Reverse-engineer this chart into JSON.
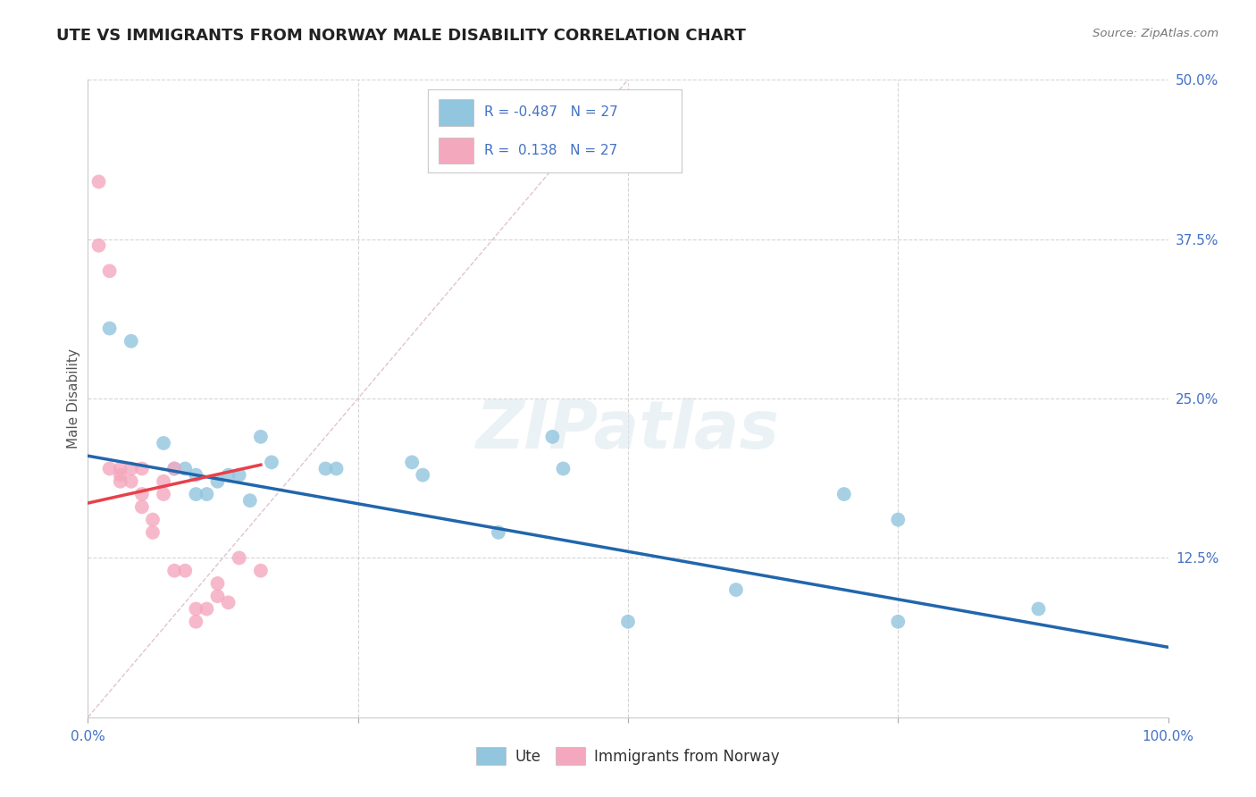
{
  "title": "UTE VS IMMIGRANTS FROM NORWAY MALE DISABILITY CORRELATION CHART",
  "source": "Source: ZipAtlas.com",
  "ylabel": "Male Disability",
  "watermark": "ZIPatlas",
  "xlim": [
    0,
    1.0
  ],
  "ylim": [
    0,
    0.5
  ],
  "yticks": [
    0.0,
    0.125,
    0.25,
    0.375,
    0.5
  ],
  "ytick_labels": [
    "",
    "12.5%",
    "25.0%",
    "37.5%",
    "50.0%"
  ],
  "xticks": [
    0.0,
    0.25,
    0.5,
    0.75,
    1.0
  ],
  "xtick_labels": [
    "0.0%",
    "",
    "",
    "",
    "100.0%"
  ],
  "legend_r_blue": "-0.487",
  "legend_r_pink": "0.138",
  "legend_n": "27",
  "blue_color": "#92c5de",
  "pink_color": "#f4a8be",
  "line_blue_color": "#2166ac",
  "line_pink_color": "#e8404a",
  "legend_text_color": "#4472c4",
  "blue_scatter_x": [
    0.02,
    0.04,
    0.07,
    0.08,
    0.09,
    0.1,
    0.1,
    0.11,
    0.12,
    0.13,
    0.14,
    0.15,
    0.16,
    0.17,
    0.22,
    0.23,
    0.3,
    0.31,
    0.43,
    0.44,
    0.6,
    0.7,
    0.75,
    0.75,
    0.88,
    0.5,
    0.38
  ],
  "blue_scatter_y": [
    0.305,
    0.295,
    0.215,
    0.195,
    0.195,
    0.19,
    0.175,
    0.175,
    0.185,
    0.19,
    0.19,
    0.17,
    0.22,
    0.2,
    0.195,
    0.195,
    0.2,
    0.19,
    0.22,
    0.195,
    0.1,
    0.175,
    0.155,
    0.075,
    0.085,
    0.075,
    0.145
  ],
  "pink_scatter_x": [
    0.01,
    0.01,
    0.02,
    0.02,
    0.03,
    0.03,
    0.03,
    0.04,
    0.04,
    0.05,
    0.05,
    0.05,
    0.06,
    0.06,
    0.07,
    0.07,
    0.08,
    0.08,
    0.09,
    0.1,
    0.1,
    0.11,
    0.12,
    0.12,
    0.13,
    0.14,
    0.16
  ],
  "pink_scatter_y": [
    0.42,
    0.37,
    0.35,
    0.195,
    0.195,
    0.19,
    0.185,
    0.195,
    0.185,
    0.195,
    0.175,
    0.165,
    0.155,
    0.145,
    0.185,
    0.175,
    0.195,
    0.115,
    0.115,
    0.085,
    0.075,
    0.085,
    0.105,
    0.095,
    0.09,
    0.125,
    0.115
  ],
  "blue_line_x": [
    0.0,
    1.0
  ],
  "blue_line_y": [
    0.205,
    0.055
  ],
  "pink_line_x": [
    0.0,
    0.16
  ],
  "pink_line_y": [
    0.168,
    0.198
  ],
  "diag_line_x": [
    0.0,
    0.5
  ],
  "diag_line_y": [
    0.0,
    0.5
  ],
  "background_color": "#ffffff",
  "grid_color": "#cccccc",
  "title_fontsize": 13,
  "axis_label_color": "#555555",
  "tick_color": "#4472c4"
}
